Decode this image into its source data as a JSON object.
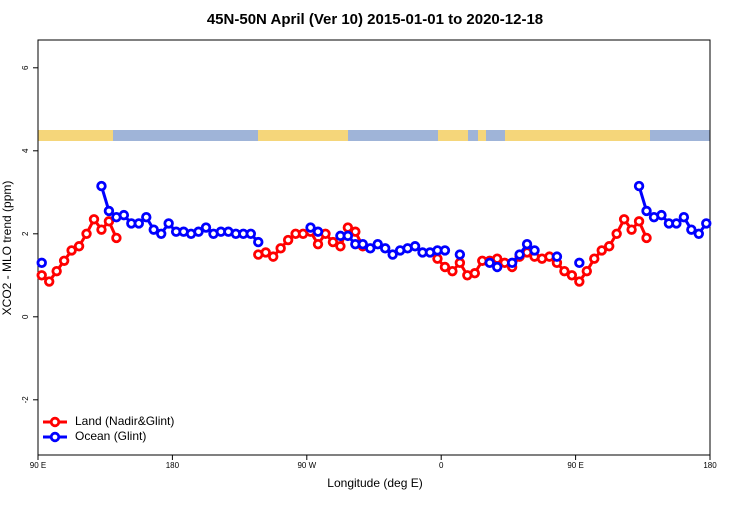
{
  "chart_data": {
    "type": "line",
    "title": "45N-50N April (Ver 10)   2015-01-01 to 2020-12-18",
    "x_label": "Longitude (deg E)",
    "y_label": "XCO2 - MLO trend (ppm)",
    "xlim": [
      90,
      540
    ],
    "xticks": [
      {
        "value": 90,
        "label": "90 E"
      },
      180,
      {
        "value": 270,
        "label": "90 W"
      },
      {
        "value": 360,
        "label": "0"
      },
      {
        "value": 450,
        "label": "90 E"
      },
      {
        "value": 540,
        "label": "180"
      }
    ],
    "ylim": [
      -3.33,
      6.67
    ],
    "yticks": [
      -2,
      0,
      2,
      4,
      6
    ],
    "legend": "bottom-left",
    "x": [
      92.5,
      97.5,
      102.5,
      107.5,
      112.5,
      117.5,
      122.5,
      127.5,
      132.5,
      137.5,
      142.5,
      147.5,
      152.5,
      157.5,
      162.5,
      167.5,
      172.5,
      177.5,
      182.5,
      187.5,
      192.5,
      197.5,
      202.5,
      207.5,
      212.5,
      217.5,
      222.5,
      227.5,
      232.5,
      237.5,
      242.5,
      247.5,
      252.5,
      257.5,
      262.5,
      267.5,
      272.5,
      277.5,
      282.5,
      287.5,
      292.5,
      297.5,
      302.5,
      307.5,
      312.5,
      317.5,
      322.5,
      327.5,
      332.5,
      337.5,
      342.5,
      347.5,
      352.5,
      357.5,
      362.5,
      367.5,
      372.5,
      377.5,
      382.5,
      387.5,
      392.5,
      397.5,
      402.5,
      407.5,
      412.5,
      417.5,
      422.5,
      427.5,
      432.5,
      437.5,
      442.5,
      447.5,
      452.5,
      457.5,
      462.5,
      467.5,
      472.5,
      477.5,
      482.5,
      487.5,
      492.5,
      497.5,
      502.5,
      507.5,
      512.5,
      517.5,
      522.5,
      527.5,
      532.5,
      537.5
    ],
    "series": [
      {
        "name": "Land (Nadir&Glint)",
        "color": "#ff0000",
        "values": [
          1.0,
          0.85,
          1.1,
          1.35,
          1.6,
          1.7,
          2.0,
          2.35,
          2.1,
          2.3,
          1.9,
          null,
          null,
          null,
          null,
          null,
          null,
          null,
          null,
          null,
          null,
          null,
          null,
          null,
          null,
          null,
          null,
          null,
          null,
          1.5,
          1.55,
          1.45,
          1.65,
          1.85,
          2.0,
          2.0,
          2.05,
          1.75,
          2.0,
          1.8,
          1.7,
          2.15,
          2.05,
          1.7,
          null,
          null,
          null,
          null,
          null,
          null,
          null,
          null,
          null,
          1.4,
          1.2,
          1.1,
          1.3,
          1.0,
          1.05,
          1.35,
          1.35,
          1.4,
          1.3,
          1.2,
          1.45,
          1.55,
          1.45,
          1.4,
          1.45,
          1.3,
          1.1,
          1.0,
          0.85,
          1.1,
          1.4,
          1.6,
          1.7,
          2.0,
          2.35,
          2.1,
          2.3,
          1.9,
          null,
          null,
          null,
          null,
          null,
          null,
          null,
          null
        ]
      },
      {
        "name": "Ocean (Glint)",
        "color": "#0000ff",
        "values": [
          1.3,
          null,
          null,
          null,
          null,
          null,
          null,
          null,
          3.15,
          2.55,
          2.4,
          2.45,
          2.25,
          2.25,
          2.4,
          2.1,
          2.0,
          2.25,
          2.05,
          2.05,
          2.0,
          2.05,
          2.15,
          2.0,
          2.05,
          2.05,
          2.0,
          2.0,
          2.0,
          1.8,
          null,
          null,
          null,
          null,
          null,
          null,
          2.15,
          2.05,
          null,
          null,
          1.95,
          1.95,
          1.75,
          1.75,
          1.65,
          1.75,
          1.65,
          1.5,
          1.6,
          1.65,
          1.7,
          1.55,
          1.55,
          1.6,
          1.6,
          null,
          1.5,
          null,
          null,
          null,
          1.3,
          1.2,
          null,
          1.3,
          1.5,
          1.75,
          1.6,
          null,
          null,
          1.45,
          null,
          null,
          1.3,
          null,
          null,
          null,
          null,
          null,
          null,
          null,
          3.15,
          2.55,
          2.4,
          2.45,
          2.25,
          2.25,
          2.4,
          2.1,
          2.0,
          2.25
        ]
      }
    ]
  }
}
